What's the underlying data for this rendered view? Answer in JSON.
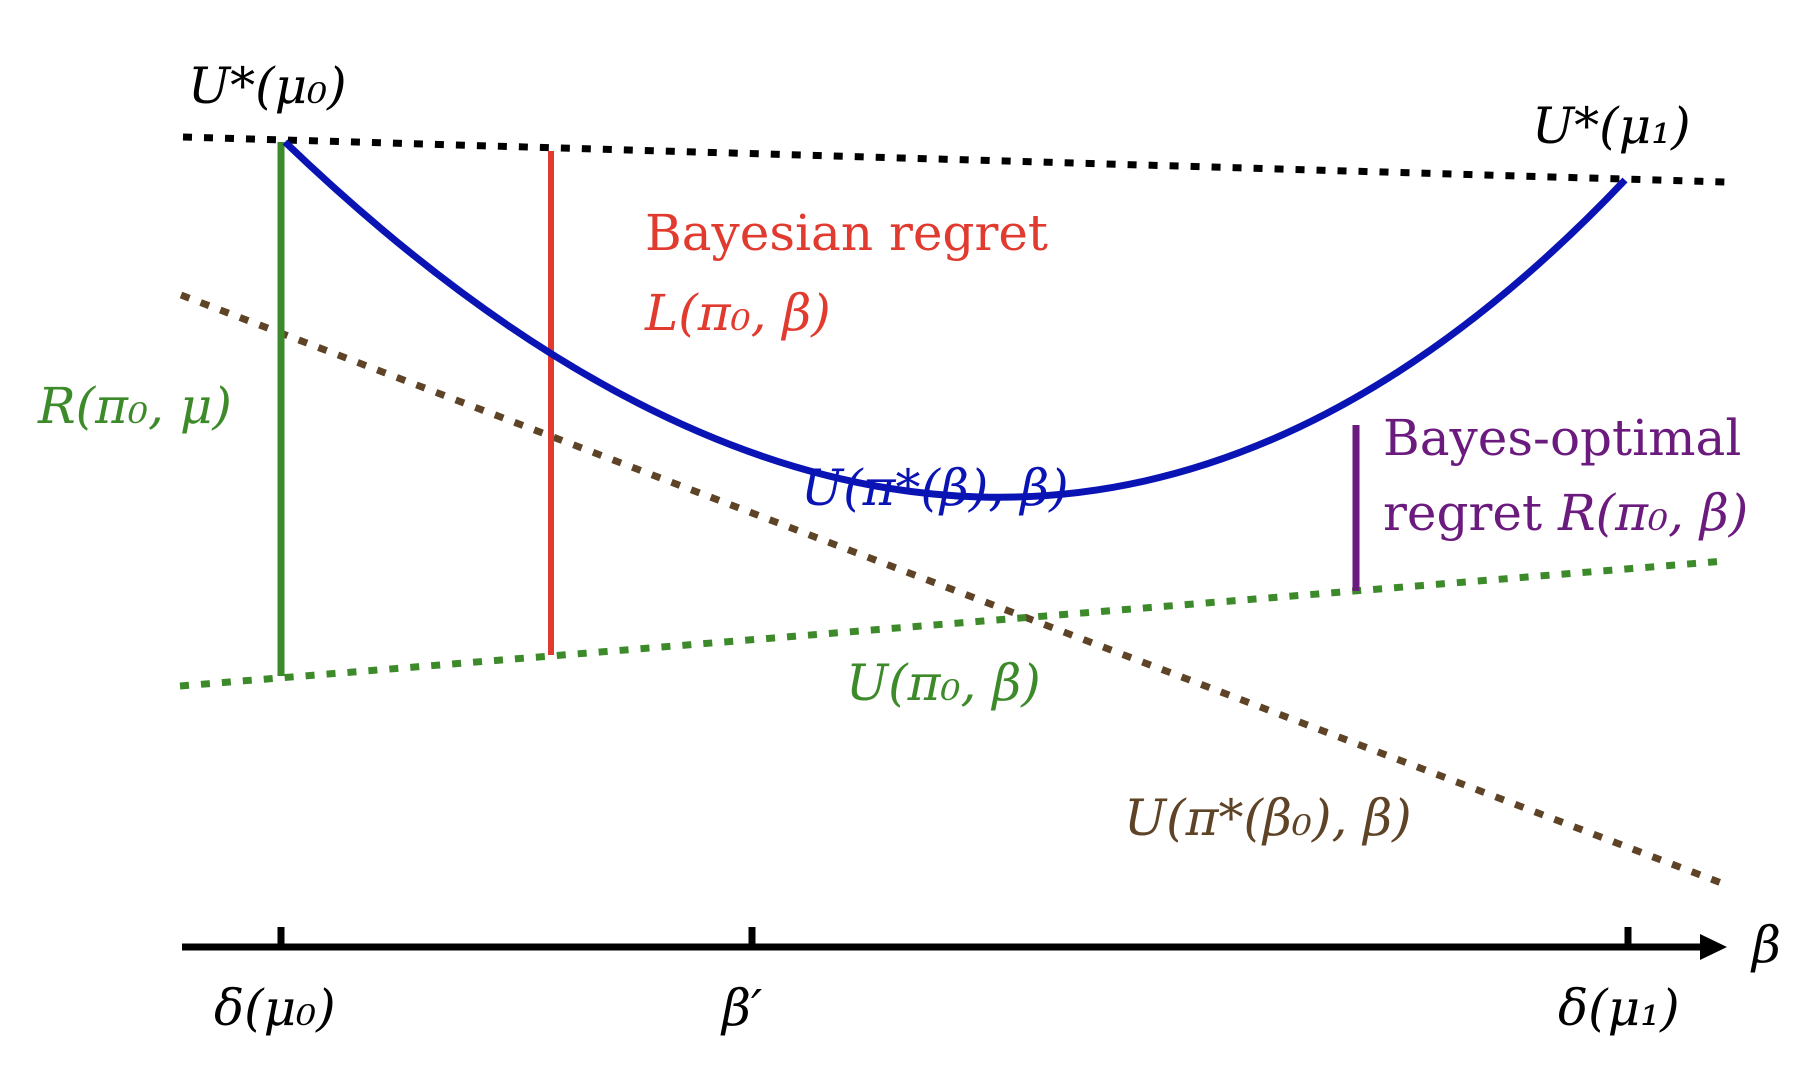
{
  "labels": {
    "u_star_mu0": "U*(μ₀)",
    "u_star_mu1": "U*(μ₁)",
    "bayesian_regret_title": "Bayesian regret",
    "bayesian_regret_formula": "L(π₀, β)",
    "r_pi0_mu": "R(π₀, μ)",
    "u_pi_star_beta": "U(π*(β), β)",
    "bayes_optimal_line1": "Bayes-optimal",
    "bayes_optimal_line2_text": "regret ",
    "bayes_optimal_line2_formula": "R(π₀, β)",
    "u_pi0_beta": "U(π₀, β)",
    "u_pi_star_beta0": "U(π*(β₀), β)",
    "axis_name": "β",
    "tick_delta_mu0": "δ(μ₀)",
    "tick_beta_prime": "β′",
    "tick_delta_mu1": "δ(μ₁)"
  },
  "colors": {
    "black": "#000000",
    "blue_curve": "#0a14b4",
    "green": "#3d8a2b",
    "red": "#e13a2f",
    "purple": "#6b1a7e",
    "brown": "#5e4326"
  }
}
